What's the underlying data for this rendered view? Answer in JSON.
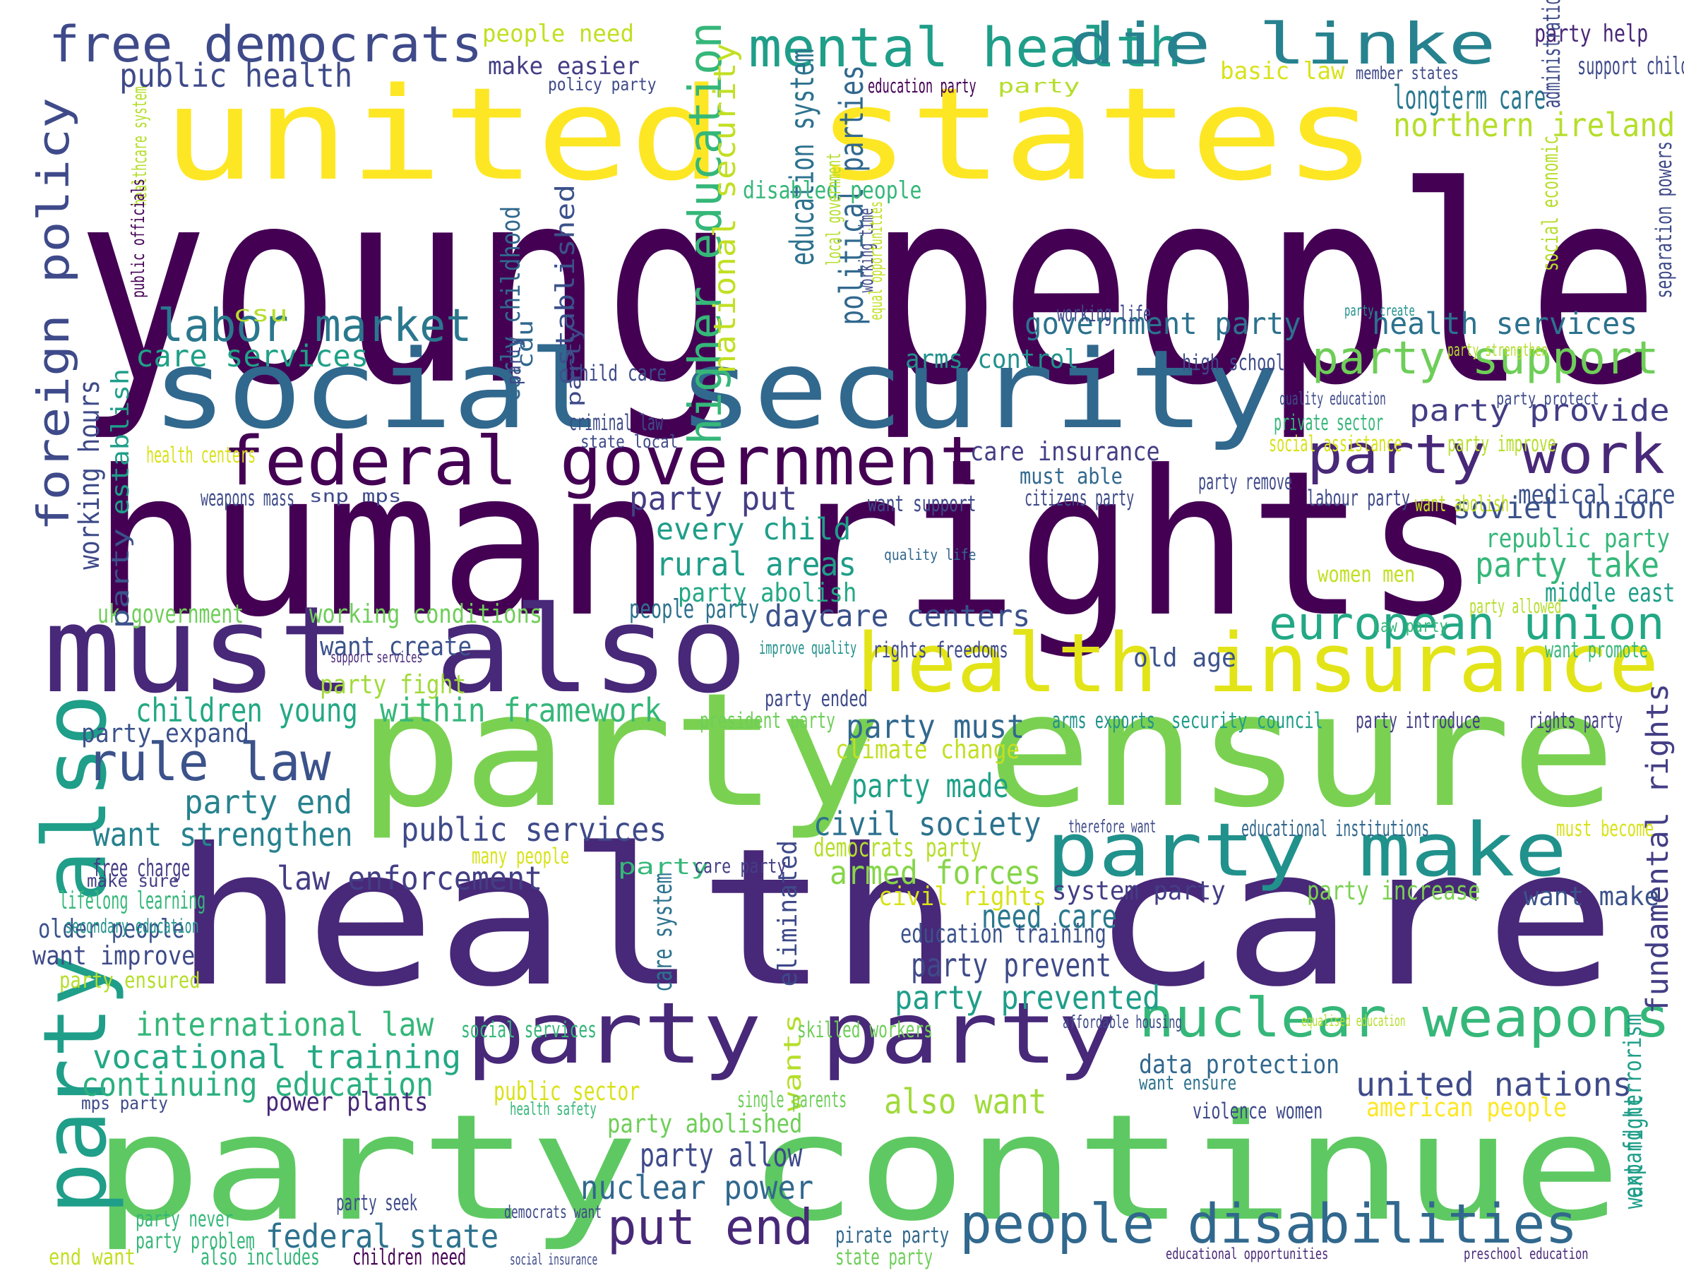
{
  "palette": {
    "dark_purple": "#440154",
    "purple": "#482878",
    "indigo": "#3e4a89",
    "blue": "#31688e",
    "teal_blue": "#26828e",
    "teal": "#1f9e89",
    "green": "#35b779",
    "light_green": "#6ece58",
    "lime": "#b5de2b",
    "yellow": "#fde725"
  },
  "words": [
    {
      "text": "young people",
      "color": "#440154"
    },
    {
      "text": "united states",
      "color": "#fde725"
    },
    {
      "text": "human rights",
      "color": "#440154"
    },
    {
      "text": "health care",
      "color": "#482878"
    },
    {
      "text": "social security",
      "color": "#31688e"
    },
    {
      "text": "party ensure",
      "color": "#7ad151"
    },
    {
      "text": "party continue",
      "color": "#5ec962"
    },
    {
      "text": "must also",
      "color": "#482878"
    },
    {
      "text": "federal government",
      "color": "#440154"
    },
    {
      "text": "health insurance",
      "color": "#e2e418"
    },
    {
      "text": "party party",
      "color": "#482878"
    },
    {
      "text": "party make",
      "color": "#21918c"
    },
    {
      "text": "mental health",
      "color": "#1f9e89"
    },
    {
      "text": "die linke",
      "color": "#26828e"
    },
    {
      "text": "free democrats",
      "color": "#3e4a89"
    },
    {
      "text": "party also",
      "color": "#1f9e89"
    },
    {
      "text": "nuclear weapons",
      "color": "#35b779"
    },
    {
      "text": "people disabilities",
      "color": "#31688e"
    },
    {
      "text": "european union",
      "color": "#22a884"
    },
    {
      "text": "party work",
      "color": "#482878"
    },
    {
      "text": "party support",
      "color": "#6ece58"
    },
    {
      "text": "foreign policy",
      "color": "#3e4a89"
    },
    {
      "text": "higher education",
      "color": "#35b779"
    },
    {
      "text": "labor market",
      "color": "#2a788e"
    },
    {
      "text": "rule law",
      "color": "#3b528b"
    },
    {
      "text": "put end",
      "color": "#482878"
    },
    {
      "text": "public health",
      "color": "#3e4a89"
    },
    {
      "text": "longterm care",
      "color": "#2a788e"
    },
    {
      "text": "northern ireland",
      "color": "#b5de2b"
    },
    {
      "text": "government party",
      "color": "#2c728e"
    },
    {
      "text": "health services",
      "color": "#2c728e"
    },
    {
      "text": "party provide",
      "color": "#433e85"
    },
    {
      "text": "soviet union",
      "color": "#3b528b"
    },
    {
      "text": "party take",
      "color": "#35b779"
    },
    {
      "text": "care services",
      "color": "#1fa187"
    },
    {
      "text": "party put",
      "color": "#433e85"
    },
    {
      "text": "every child",
      "color": "#1f9e89"
    },
    {
      "text": "rural areas",
      "color": "#1f9e89"
    },
    {
      "text": "daycare centers",
      "color": "#3b528b"
    },
    {
      "text": "children young",
      "color": "#22a884"
    },
    {
      "text": "within framework",
      "color": "#35b779"
    },
    {
      "text": "party must",
      "color": "#31688e"
    },
    {
      "text": "party made",
      "color": "#1fa187"
    },
    {
      "text": "party end",
      "color": "#26828e"
    },
    {
      "text": "want strengthen",
      "color": "#26828e"
    },
    {
      "text": "public services",
      "color": "#3e4a89"
    },
    {
      "text": "civil society",
      "color": "#2c728e"
    },
    {
      "text": "armed forces",
      "color": "#86d549"
    },
    {
      "text": "law enforcement",
      "color": "#433e85"
    },
    {
      "text": "need care",
      "color": "#2a788e"
    },
    {
      "text": "education training",
      "color": "#3b528b"
    },
    {
      "text": "party prevent",
      "color": "#3e4a89"
    },
    {
      "text": "party prevented",
      "color": "#1f9e89"
    },
    {
      "text": "international law",
      "color": "#35b779"
    },
    {
      "text": "vocational training",
      "color": "#22a884"
    },
    {
      "text": "continuing education",
      "color": "#2ab07f"
    },
    {
      "text": "federal state",
      "color": "#2c728e"
    },
    {
      "text": "party allow",
      "color": "#3e4a89"
    },
    {
      "text": "nuclear power",
      "color": "#31688e"
    },
    {
      "text": "united nations",
      "color": "#3e4a89"
    },
    {
      "text": "data protection",
      "color": "#31688e"
    },
    {
      "text": "also want",
      "color": "#a0da39"
    },
    {
      "text": "education system",
      "color": "#2c728e"
    },
    {
      "text": "political parties",
      "color": "#31688e"
    },
    {
      "text": "fundamental rights",
      "color": "#433e85"
    },
    {
      "text": "working hours",
      "color": "#3e4a89"
    },
    {
      "text": "national security",
      "color": "#c2df23"
    },
    {
      "text": "older people",
      "color": "#3b528b"
    },
    {
      "text": "want improve",
      "color": "#3e4a89"
    },
    {
      "text": "arms control",
      "color": "#21918c"
    },
    {
      "text": "care insurance",
      "color": "#433e85"
    },
    {
      "text": "medical care",
      "color": "#3b528b"
    },
    {
      "text": "republic party",
      "color": "#35b779"
    },
    {
      "text": "middle east",
      "color": "#1f9e89"
    },
    {
      "text": "old age",
      "color": "#3b528b"
    },
    {
      "text": "party expand",
      "color": "#3b528b"
    },
    {
      "text": "want make",
      "color": "#3b528b"
    },
    {
      "text": "party increase",
      "color": "#7ad151"
    },
    {
      "text": "climate change",
      "color": "#c2df23"
    },
    {
      "text": "civil rights",
      "color": "#d8e219"
    },
    {
      "text": "democrats party",
      "color": "#b5de2b"
    },
    {
      "text": "system party",
      "color": "#433e85"
    },
    {
      "text": "power plants",
      "color": "#482878"
    },
    {
      "text": "party abolished",
      "color": "#6ece58"
    },
    {
      "text": "public sector",
      "color": "#d8e219"
    },
    {
      "text": "american people",
      "color": "#fde725"
    },
    {
      "text": "people party",
      "color": "#2c728e"
    },
    {
      "text": "uk government",
      "color": "#6ece58"
    },
    {
      "text": "working conditions",
      "color": "#6ece58"
    },
    {
      "text": "party abolish",
      "color": "#22a884"
    },
    {
      "text": "party fight",
      "color": "#a0da39"
    },
    {
      "text": "want create",
      "color": "#3b528b"
    },
    {
      "text": "people need",
      "color": "#c2df23"
    },
    {
      "text": "make easier",
      "color": "#433e85"
    },
    {
      "text": "basic law",
      "color": "#d8e219"
    },
    {
      "text": "disabled people",
      "color": "#35b779"
    },
    {
      "text": "early childhood",
      "color": "#31688e"
    },
    {
      "text": "established",
      "color": "#3b528b"
    },
    {
      "text": "care system",
      "color": "#2c728e"
    },
    {
      "text": "eliminated",
      "color": "#3e4a89"
    },
    {
      "text": "wants",
      "color": "#b5de2b"
    },
    {
      "text": "party",
      "color": "#35b779"
    },
    {
      "text": "expand terrorism",
      "color": "#1f9e89"
    },
    {
      "text": "want fight",
      "color": "#1f9e89"
    },
    {
      "text": "establish",
      "color": "#1f9e89"
    },
    {
      "text": "party",
      "color": "#3b528b"
    },
    {
      "text": "lifelong learning",
      "color": "#35b779"
    },
    {
      "text": "free charge",
      "color": "#433e85"
    },
    {
      "text": "make sure",
      "color": "#433e85"
    },
    {
      "text": "secondary education",
      "color": "#21918c"
    },
    {
      "text": "party ensured",
      "color": "#b5de2b"
    },
    {
      "text": "mps party",
      "color": "#3e4a89"
    },
    {
      "text": "party never",
      "color": "#35b779"
    },
    {
      "text": "party problem",
      "color": "#35b779"
    },
    {
      "text": "end want",
      "color": "#c2df23"
    },
    {
      "text": "also includes",
      "color": "#35b779"
    },
    {
      "text": "children need",
      "color": "#440154"
    },
    {
      "text": "party seek",
      "color": "#3e4a89"
    },
    {
      "text": "democrats want",
      "color": "#3e4a89"
    },
    {
      "text": "pirate party",
      "color": "#31688e"
    },
    {
      "text": "state party",
      "color": "#6ece58"
    },
    {
      "text": "social insurance",
      "color": "#3e4a89"
    },
    {
      "text": "educational opportunities",
      "color": "#482878"
    },
    {
      "text": "preschool education",
      "color": "#482878"
    },
    {
      "text": "social services",
      "color": "#35b779"
    },
    {
      "text": "skilled workers",
      "color": "#6ece58"
    },
    {
      "text": "affordable housing",
      "color": "#3e4a89"
    },
    {
      "text": "equalised education",
      "color": "#b5de2b"
    },
    {
      "text": "single parents",
      "color": "#6ece58"
    },
    {
      "text": "health safety",
      "color": "#35b779"
    },
    {
      "text": "violence women",
      "color": "#3e4a89"
    },
    {
      "text": "want ensure",
      "color": "#2c728e"
    },
    {
      "text": "care party",
      "color": "#433e85"
    },
    {
      "text": "many people",
      "color": "#d8e219"
    },
    {
      "text": "therefore want",
      "color": "#3e4a89"
    },
    {
      "text": "educational institutions",
      "color": "#31688e"
    },
    {
      "text": "must become",
      "color": "#d8e219"
    },
    {
      "text": "president party",
      "color": "#6ece58"
    },
    {
      "text": "party ended",
      "color": "#3e4a89"
    },
    {
      "text": "arms exports",
      "color": "#21918c"
    },
    {
      "text": "security council",
      "color": "#1f9e89"
    },
    {
      "text": "party introduce",
      "color": "#433e85"
    },
    {
      "text": "rights party",
      "color": "#433e85"
    },
    {
      "text": "improve quality",
      "color": "#21918c"
    },
    {
      "text": "rights freedoms",
      "color": "#3e4a89"
    },
    {
      "text": "support services",
      "color": "#482878"
    },
    {
      "text": "want promote",
      "color": "#35b779"
    },
    {
      "text": "law party",
      "color": "#35b779"
    },
    {
      "text": "party allowed",
      "color": "#b5de2b"
    },
    {
      "text": "women men",
      "color": "#c2df23"
    },
    {
      "text": "quality life",
      "color": "#31688e"
    },
    {
      "text": "labour party",
      "color": "#3e4a89"
    },
    {
      "text": "want abolish",
      "color": "#c2df23"
    },
    {
      "text": "want support",
      "color": "#3e4a89"
    },
    {
      "text": "citizens party",
      "color": "#3e4a89"
    },
    {
      "text": "must able",
      "color": "#31688e"
    },
    {
      "text": "party remove",
      "color": "#3e4a89"
    },
    {
      "text": "weapons mass",
      "color": "#3e4a89"
    },
    {
      "text": "snp mps",
      "color": "#3e4a89"
    },
    {
      "text": "health centers",
      "color": "#d8e219"
    },
    {
      "text": "state local",
      "color": "#3e4a89"
    },
    {
      "text": "criminal law",
      "color": "#3e4a89"
    },
    {
      "text": "private sector",
      "color": "#35b779"
    },
    {
      "text": "social assistance",
      "color": "#d8e219"
    },
    {
      "text": "party improve",
      "color": "#b5de2b"
    },
    {
      "text": "quality education",
      "color": "#3e4a89"
    },
    {
      "text": "party protect",
      "color": "#3e4a89"
    },
    {
      "text": "high school",
      "color": "#3e4a89"
    },
    {
      "text": "child care",
      "color": "#3e4a89"
    },
    {
      "text": "working life",
      "color": "#3e4a89"
    },
    {
      "text": "party create",
      "color": "#21918c"
    },
    {
      "text": "party strengthen",
      "color": "#b5de2b"
    },
    {
      "text": "csu",
      "color": "#b5de2b"
    },
    {
      "text": "cdu",
      "color": "#31688e"
    },
    {
      "text": "party",
      "color": "#3e4a89"
    },
    {
      "text": "party",
      "color": "#3e4a89"
    },
    {
      "text": "working time",
      "color": "#3e4a89"
    },
    {
      "text": "equal opportunities",
      "color": "#c2df23"
    },
    {
      "text": "local government",
      "color": "#b5de2b"
    },
    {
      "text": "healthcare system",
      "color": "#b5de2b"
    },
    {
      "text": "public officials",
      "color": "#440154"
    },
    {
      "text": "party help",
      "color": "#482878"
    },
    {
      "text": "support children",
      "color": "#3e4a89"
    },
    {
      "text": "member states",
      "color": "#3e4a89"
    },
    {
      "text": "policy party",
      "color": "#3e4a89"
    },
    {
      "text": "education party",
      "color": "#440154"
    },
    {
      "text": "party",
      "color": "#b5de2b"
    },
    {
      "text": "administration",
      "color": "#3e4a89"
    },
    {
      "text": "social economic",
      "color": "#b5de2b"
    },
    {
      "text": "separation powers",
      "color": "#3e4a89"
    }
  ]
}
